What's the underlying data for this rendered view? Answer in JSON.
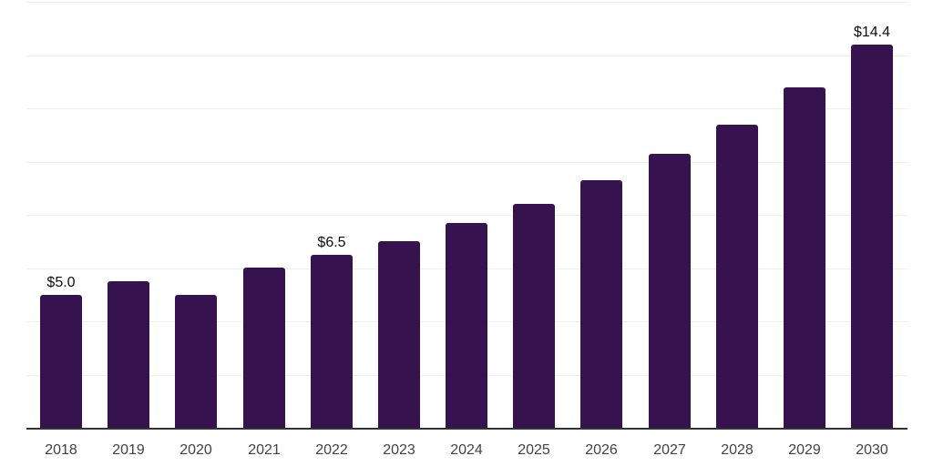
{
  "chart_data": {
    "type": "bar",
    "title": "",
    "xlabel": "",
    "ylabel": "",
    "categories": [
      "2018",
      "2019",
      "2020",
      "2021",
      "2022",
      "2023",
      "2024",
      "2025",
      "2026",
      "2027",
      "2028",
      "2029",
      "2030"
    ],
    "values": [
      5.0,
      5.5,
      5.0,
      6.0,
      6.5,
      7.0,
      7.7,
      8.4,
      9.3,
      10.3,
      11.4,
      12.8,
      14.4
    ],
    "value_labels": [
      "$5.0",
      "",
      "",
      "",
      "$6.5",
      "",
      "",
      "",
      "",
      "",
      "",
      "",
      "$14.4"
    ],
    "ylim": [
      0,
      16
    ],
    "gridline_step": 2,
    "grid": true,
    "legend": false,
    "colors": {
      "bar": "#36124e",
      "axis_line": "#333333",
      "gridline": "#f0f0f0",
      "tick_label": "#434343",
      "value_label": "#0d0d0d",
      "background": "#ffffff"
    }
  }
}
